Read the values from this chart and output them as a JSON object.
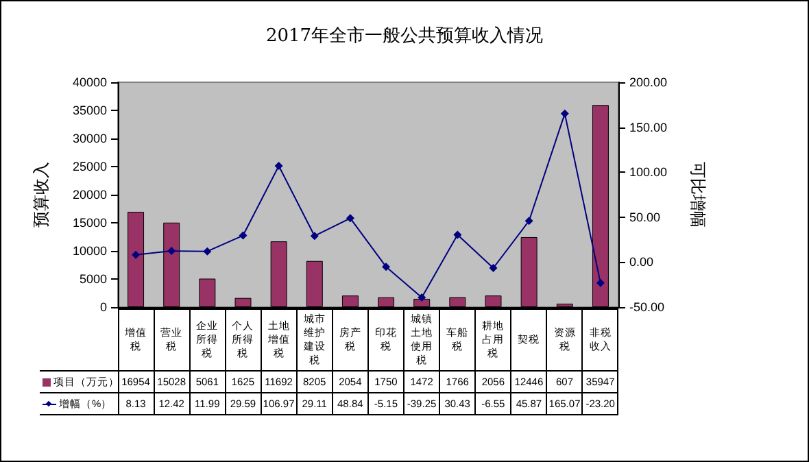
{
  "chart_data": {
    "type": "bar",
    "title": "2017年全市一般公共预算收入情况",
    "ylabel": "预算收入",
    "y2label": "可比增幅",
    "categories": [
      "增值税",
      "营业税",
      "企业所得税",
      "个人所得税",
      "土地增值税",
      "城市维护建设税",
      "房产税",
      "印花税",
      "城镇土地使用税",
      "车船税",
      "耕地占用税",
      "契税",
      "资源税",
      "非税收入"
    ],
    "series": [
      {
        "name": "项目（万元）",
        "color": "#993366",
        "values": [
          16954,
          15028,
          5061,
          1625,
          11692,
          8205,
          2054,
          1750,
          1472,
          1766,
          2056,
          12446,
          607,
          35947
        ]
      },
      {
        "name": "增幅（%）",
        "type": "line",
        "axis": "y2",
        "color": "#000080",
        "marker": "diamond",
        "values": [
          8.13,
          12.42,
          11.99,
          29.59,
          106.97,
          29.11,
          48.84,
          -5.15,
          -39.25,
          30.43,
          -6.55,
          45.87,
          165.07,
          -23.2
        ],
        "value_labels": [
          "8.13",
          "12.42",
          "11.99",
          "29.59",
          "106.97",
          "29.11",
          "48.84",
          "-5.15",
          "-39.25",
          "30.43",
          "-6.55",
          "45.87",
          "165.07",
          "-23.20"
        ]
      }
    ],
    "ylim": [
      0,
      40000
    ],
    "yticks": [
      0,
      5000,
      10000,
      15000,
      20000,
      25000,
      30000,
      35000,
      40000
    ],
    "y2lim": [
      -50,
      200
    ],
    "y2ticks": [
      {
        "value": -50,
        "label": "-50.00"
      },
      {
        "value": 0,
        "label": "0.00"
      },
      {
        "value": 50,
        "label": "50.00"
      },
      {
        "value": 100,
        "label": "100.00"
      },
      {
        "value": 150,
        "label": "150.00"
      },
      {
        "value": 200,
        "label": "200.00"
      }
    ],
    "data_labels": true,
    "grid": false,
    "legend": "bottom left"
  }
}
